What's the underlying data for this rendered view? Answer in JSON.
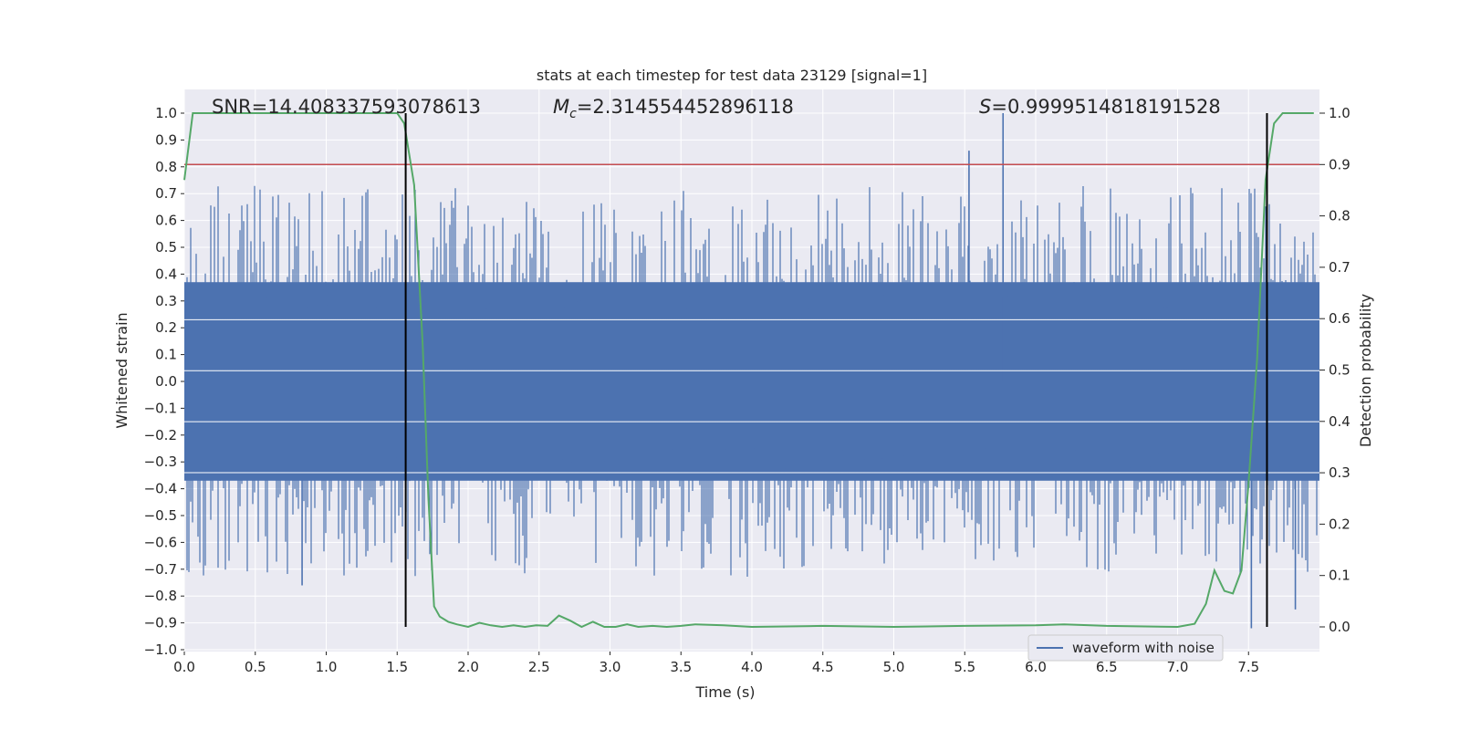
{
  "chart_data": {
    "type": "line",
    "title": "stats at each timestep for test data 23129 [signal=1]",
    "xlabel": "Time (s)",
    "ylabel_left": "Whitened strain",
    "ylabel_right": "Detection probability",
    "xlim": [
      0.0,
      8.0
    ],
    "ylim_left": [
      -1.0,
      1.0
    ],
    "ylim_right": [
      0.0,
      1.0
    ],
    "x_ticks": [
      "0.0",
      "0.5",
      "1.0",
      "1.5",
      "2.0",
      "2.5",
      "3.0",
      "3.5",
      "4.0",
      "4.5",
      "5.0",
      "5.5",
      "6.0",
      "6.5",
      "7.0",
      "7.5"
    ],
    "y_left_ticks": [
      "-1.0",
      "-0.9",
      "-0.8",
      "-0.7",
      "-0.6",
      "-0.5",
      "-0.4",
      "-0.3",
      "-0.2",
      "-0.1",
      "0.0",
      "0.1",
      "0.2",
      "0.3",
      "0.4",
      "0.5",
      "0.6",
      "0.7",
      "0.8",
      "0.9",
      "1.0"
    ],
    "y_right_ticks": [
      "0.0",
      "0.1",
      "0.2",
      "0.3",
      "0.4",
      "0.5",
      "0.6",
      "0.7",
      "0.8",
      "0.9",
      "1.0"
    ],
    "grid": true,
    "legend_position": "lower-right",
    "annotations": {
      "snr": "SNR=14.408337593078613",
      "mc_symbol": "M",
      "mc_sub": "c",
      "mc_value": "=2.314554452896118",
      "s_symbol": "S",
      "s_value": "=0.9999514818191528"
    },
    "series": [
      {
        "name": "waveform with noise",
        "axis": "left",
        "color": "#4c72b0",
        "envelope_upper": 0.37,
        "envelope_lower": -0.37,
        "notable_peaks": [
          {
            "x": 5.77,
            "y": 1.0
          },
          {
            "x": 5.53,
            "y": 0.86
          },
          {
            "x": 7.52,
            "y": -0.92
          },
          {
            "x": 7.83,
            "y": -0.85
          },
          {
            "x": 0.83,
            "y": -0.76
          }
        ]
      },
      {
        "axis": "right",
        "color": "#55a868",
        "x": [
          0.0,
          0.06,
          0.2,
          0.5,
          1.0,
          1.4,
          1.5,
          1.55,
          1.62,
          1.68,
          1.72,
          1.76,
          1.8,
          1.86,
          1.92,
          2.0,
          2.08,
          2.16,
          2.24,
          2.32,
          2.4,
          2.48,
          2.56,
          2.64,
          2.72,
          2.8,
          2.88,
          2.96,
          3.04,
          3.12,
          3.2,
          3.3,
          3.4,
          3.5,
          3.6,
          3.8,
          4.0,
          4.5,
          5.0,
          5.5,
          6.0,
          6.2,
          6.5,
          7.0,
          7.12,
          7.2,
          7.26,
          7.33,
          7.39,
          7.45,
          7.5,
          7.56,
          7.62,
          7.68,
          7.74,
          7.8,
          7.96
        ],
        "y": [
          0.87,
          1.0,
          1.0,
          1.0,
          1.0,
          1.0,
          1.0,
          0.98,
          0.86,
          0.55,
          0.25,
          0.04,
          0.02,
          0.01,
          0.005,
          0.0,
          0.008,
          0.003,
          0.0,
          0.003,
          0.0,
          0.003,
          0.002,
          0.022,
          0.012,
          0.0,
          0.01,
          0.0,
          0.0,
          0.005,
          0.0,
          0.002,
          0.0,
          0.002,
          0.005,
          0.003,
          0.0,
          0.002,
          0.0,
          0.002,
          0.003,
          0.005,
          0.002,
          0.0,
          0.006,
          0.045,
          0.11,
          0.07,
          0.065,
          0.11,
          0.28,
          0.52,
          0.87,
          0.98,
          1.0,
          1.0,
          1.0
        ]
      }
    ],
    "threshold_line": {
      "axis": "right",
      "value": 0.9,
      "color": "#c44e52"
    },
    "vertical_markers": [
      1.56,
      7.63
    ]
  },
  "palette": {
    "plot_background": "#eaeaf2",
    "grid": "#ffffff",
    "marker_line": "#000000"
  }
}
